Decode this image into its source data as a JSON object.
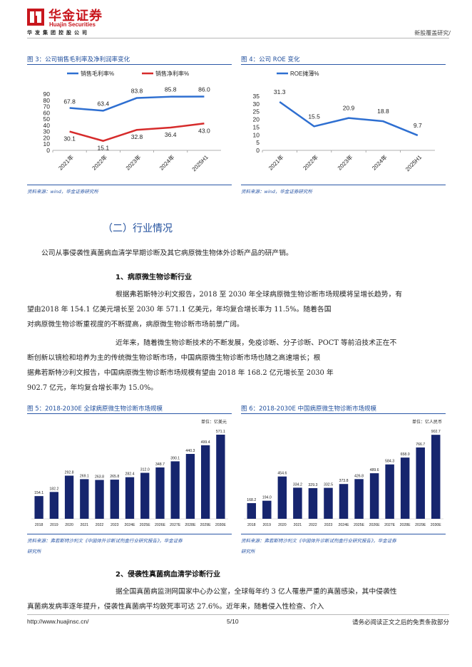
{
  "header": {
    "brand_cn": "华金证券",
    "brand_en": "Huajin Securities",
    "group": "华发集团控股公司",
    "report_type": "新股覆盖研究/"
  },
  "fig3": {
    "title": "图 3：公司销售毛利率及净利润率变化",
    "source": "资料来源：wind，华金证券研究所"
  },
  "fig4": {
    "title": "图 4：公司 ROE 变化",
    "source": "资料来源：wind，华金证券研究所"
  },
  "section": {
    "title": "（二）行业情况"
  },
  "paragraphs": {
    "p1": "公司从事侵袭性真菌病血清学早期诊断及其它病原微生物体外诊断产品的研产销。",
    "h1": "1、病原微生物诊断行业",
    "p2_l1": "根据弗若斯特沙利文报告，2018 至 2030 年全球病原微生物诊断市场规模将呈增长趋势，有",
    "p2_l2": "望由2018  年 154.1 亿美元增长至 2030 年 571.1 亿美元，年均复合增长率为 11.5%。随着各国",
    "p2_l3": "对病原微生物诊断重视度的不断提高，病原微生物诊断市场前景广阔。",
    "p3_l1": "近年来，随着微生物诊断技术的不断发展，免疫诊断、分子诊断、POCT 等前沿技术正在不",
    "p3_l2": "断创新以镜检和培养为主的传统微生物诊断市场，中国病原微生物诊断市场也随之高速增长；根",
    "p3_l3": "据弗若斯特沙利文报告，中国病原微生物诊断市场规模有望由 2018 年 168.2 亿元增长至 2030 年",
    "p3_l4": "902.7 亿元，年均复合增长率为 15.0%。",
    "h2": "2、侵袭性真菌病血清学诊断行业",
    "p4_l1": "据全国真菌病监测网国家中心办公室，全球每年约 3 亿人罹患严重的真菌感染，其中侵袭性",
    "p4_l2": "真菌病发病率逐年提升，侵袭性真菌病平均致死率可达 27.6%。近年来，随着侵入性检查、介入"
  },
  "fig5": {
    "title_pre": "图 5：2018-2030E ",
    "title": "全球病原微生物诊断市场规模",
    "source_l1": "资料来源：弗若斯特沙利文《中国体外诊断试剂盒行业研究报告》，华金证券",
    "source_l2": "研究所"
  },
  "fig6": {
    "title_pre": "图 6：2018-2030E ",
    "title": "中国病原微生物诊断市场规模",
    "source_l1": "资料来源：弗若斯特沙利文《中国体外诊断试剂盒行业研究报告》，华金证券",
    "source_l2": "研究所"
  },
  "footer": {
    "url": "http://www.huajinsc.cn/",
    "page": "5/10",
    "disclaimer": "请务必阅读正文之后的免责条款部分"
  },
  "chart_data": [
    {
      "type": "line",
      "categories": [
        "2021年",
        "2022年",
        "2023年",
        "2024年",
        "2025H1"
      ],
      "series": [
        {
          "name": "销售毛利率%",
          "values": [
            67.8,
            63.4,
            83.8,
            85.8,
            86.0
          ],
          "color": "#2e6fd1"
        },
        {
          "name": "销售净利率%",
          "values": [
            30.1,
            15.1,
            32.8,
            36.4,
            43.0
          ],
          "color": "#d62b2b"
        }
      ],
      "ylim": [
        0,
        90
      ],
      "yticks": [
        0,
        10,
        20,
        30,
        40,
        50,
        60,
        70,
        80,
        90
      ],
      "legend": "top",
      "grid": false
    },
    {
      "type": "line",
      "categories": [
        "2021年",
        "2022年",
        "2023年",
        "2024年",
        "2025H1"
      ],
      "series": [
        {
          "name": "ROE摊薄%",
          "values": [
            31.3,
            15.5,
            20.9,
            18.8,
            9.7
          ],
          "color": "#2e6fd1"
        }
      ],
      "ylim": [
        0,
        35
      ],
      "yticks": [
        0,
        5,
        10,
        15,
        20,
        25,
        30,
        35
      ],
      "legend": "top",
      "grid": false
    },
    {
      "type": "bar",
      "unit": "单位：亿美元",
      "categories": [
        "2018",
        "2019",
        "2020",
        "2021",
        "2022",
        "2023",
        "2024E",
        "2025E",
        "2026E",
        "2027E",
        "2028E",
        "2029E",
        "2030E"
      ],
      "values": [
        154.1,
        182.2,
        292.8,
        269.1,
        263.8,
        265.8,
        282.4,
        312.0,
        348.7,
        390.1,
        440.3,
        499.4,
        571.1
      ],
      "labels": [
        "154.1",
        "182.2",
        "292.8",
        "269.1",
        "263.8",
        "265.8",
        "282.4",
        "312.0",
        "348.7",
        "390.1",
        "440.3",
        "499.4",
        "571.1"
      ],
      "ylim": [
        0,
        600
      ],
      "color": "#16256e"
    },
    {
      "type": "bar",
      "unit": "单位：亿人民币",
      "categories": [
        "2018",
        "2019",
        "2020",
        "2021",
        "2022",
        "2023",
        "2024E",
        "2025E",
        "2026E",
        "2027E",
        "2028E",
        "2029E",
        "2030E"
      ],
      "values": [
        168.2,
        194.0,
        454.6,
        334.2,
        329.3,
        332.5,
        373.8,
        426.8,
        489.6,
        584.3,
        658.0,
        766.7,
        902.7
      ],
      "labels": [
        "168.2",
        "194.0",
        "454.6",
        "334.2",
        "329.3",
        "332.5",
        "373.8",
        "426.8",
        "489.6",
        "584.3",
        "658.0",
        "766.7",
        "902.7"
      ],
      "ylim": [
        0,
        950
      ],
      "color": "#16256e"
    }
  ]
}
